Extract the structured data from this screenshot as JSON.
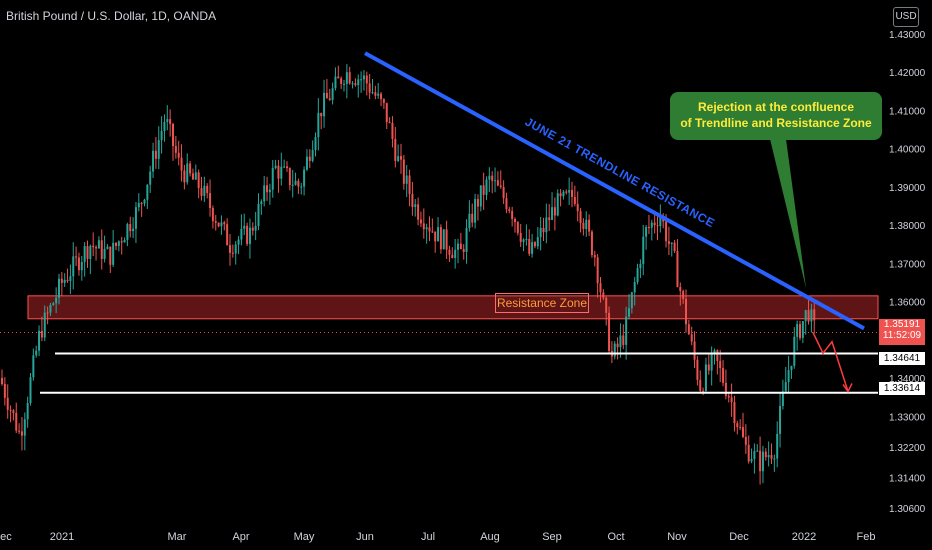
{
  "title": "British Pound / U.S. Dollar, 1D, OANDA",
  "currency_label": "USD",
  "colors": {
    "up": "#26a69a",
    "down": "#ef5350",
    "trendline": "#2962ff",
    "zone": "#d32f2f",
    "callout": "#2e7d32",
    "callout_text": "#ffeb3b"
  },
  "annotations": {
    "trendline_label": "JUNE 21 TRENDLINE RESISTANCE",
    "zone_label": "Resistance Zone",
    "callout_line1": "Rejection at the confluence",
    "callout_line2": "of Trendline and Resistance Zone"
  },
  "price_tags": {
    "current": "1.35191",
    "countdown": "11:52:09",
    "support1": "1.34641",
    "support2": "1.33614"
  },
  "chart_data": {
    "type": "candlestick",
    "ylim": [
      1.305,
      1.435
    ],
    "y_ticks": [
      "1.43000",
      "1.42000",
      "1.41000",
      "1.40000",
      "1.39000",
      "1.38000",
      "1.37000",
      "1.36000",
      "1.34000",
      "1.33000",
      "1.32200",
      "1.31400",
      "1.30600"
    ],
    "x_ticks": [
      "Dec",
      "2021",
      "Mar",
      "Apr",
      "May",
      "Jun",
      "Jul",
      "Aug",
      "Sep",
      "Oct",
      "Nov",
      "Dec",
      "2022",
      "Feb"
    ],
    "resistance_zone": [
      1.3555,
      1.3615
    ],
    "support_levels": [
      1.34641,
      1.33614
    ],
    "current_price": 1.35191,
    "trendline": {
      "from": [
        "Jun",
        1.425
      ],
      "to": [
        "Feb",
        1.353
      ]
    },
    "projection": [
      1.35191,
      1.3465,
      1.3495,
      1.3365
    ]
  }
}
